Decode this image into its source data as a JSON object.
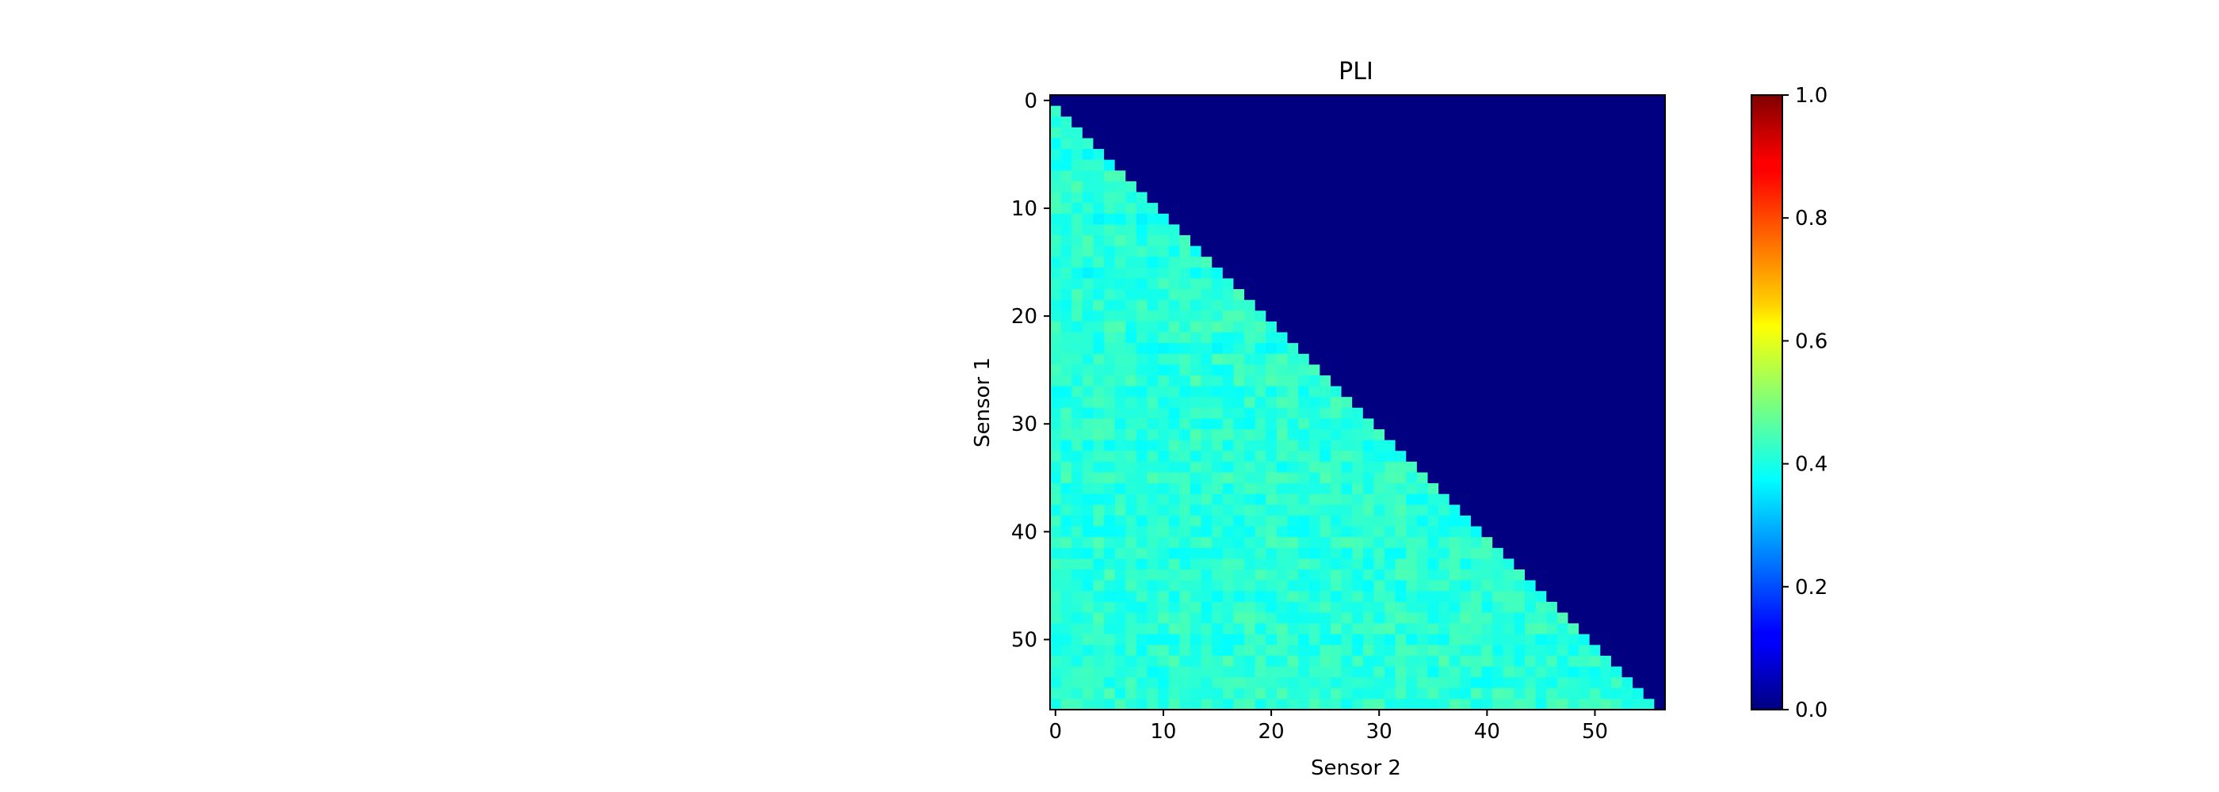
{
  "chart_data": {
    "type": "heatmap",
    "title": "PLI",
    "xlabel": "Sensor 2",
    "ylabel": "Sensor 1",
    "n_sensors": 57,
    "xlim": [
      -0.5,
      56.5
    ],
    "ylim": [
      56.5,
      -0.5
    ],
    "x_ticks": [
      0,
      10,
      20,
      30,
      40,
      50
    ],
    "y_ticks": [
      0,
      10,
      20,
      30,
      40,
      50
    ],
    "colormap": "jet",
    "colorbar": {
      "vmin": 0.0,
      "vmax": 1.0,
      "ticks": [
        "0.0",
        "0.2",
        "0.4",
        "0.6",
        "0.8",
        "1.0"
      ]
    },
    "mask": "upper triangle including diagonal = 0.0",
    "matrix_row_means": [
      0.0,
      0.42,
      0.41,
      0.4,
      0.4,
      0.39,
      0.4,
      0.42,
      0.43,
      0.41,
      0.42,
      0.4,
      0.41,
      0.42,
      0.41,
      0.41,
      0.4,
      0.41,
      0.42,
      0.41,
      0.42,
      0.42,
      0.41,
      0.4,
      0.42,
      0.41,
      0.42,
      0.41,
      0.42,
      0.41,
      0.41,
      0.42,
      0.41,
      0.41,
      0.41,
      0.42,
      0.41,
      0.41,
      0.42,
      0.41,
      0.41,
      0.42,
      0.41,
      0.41,
      0.42,
      0.41,
      0.41,
      0.41,
      0.42,
      0.42,
      0.41,
      0.41,
      0.42,
      0.41,
      0.41,
      0.42,
      0.42
    ],
    "value_spread": 0.035
  }
}
